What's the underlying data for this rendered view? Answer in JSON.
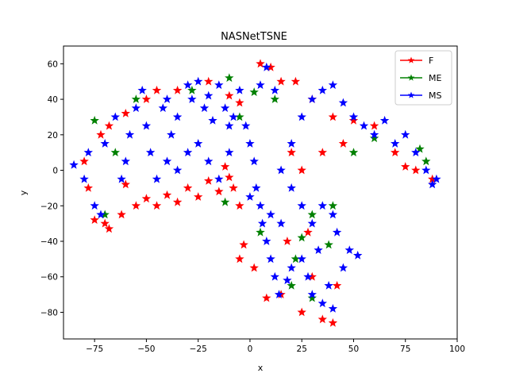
{
  "chart_data": {
    "type": "scatter",
    "title": "NASNetTSNE",
    "xlabel": "x",
    "ylabel": "y",
    "xlim": [
      -90,
      100
    ],
    "ylim": [
      -95,
      70
    ],
    "xticks": [
      -75,
      -50,
      -25,
      0,
      25,
      50,
      75,
      100
    ],
    "yticks": [
      -80,
      -60,
      -40,
      -20,
      0,
      20,
      40,
      60
    ],
    "xtick_labels": [
      "−75",
      "−50",
      "−25",
      "0",
      "25",
      "50",
      "75",
      "100"
    ],
    "ytick_labels": [
      "−80",
      "−60",
      "−40",
      "−20",
      "0",
      "20",
      "40",
      "60"
    ],
    "grid": false,
    "legend_position": "top-right",
    "marker": "star",
    "series": [
      {
        "name": "F",
        "color": "#ff0000",
        "points": [
          [
            -60,
            -8
          ],
          [
            -50,
            -16
          ],
          [
            -40,
            -14
          ],
          [
            -30,
            -10
          ],
          [
            -20,
            -6
          ],
          [
            -10,
            -4
          ],
          [
            -35,
            -18
          ],
          [
            -25,
            -15
          ],
          [
            -15,
            -12
          ],
          [
            -45,
            -20
          ],
          [
            -55,
            -20
          ],
          [
            -8,
            -10
          ],
          [
            -5,
            -20
          ],
          [
            -12,
            2
          ],
          [
            -70,
            -30
          ],
          [
            -68,
            -33
          ],
          [
            -75,
            -28
          ],
          [
            -62,
            -25
          ],
          [
            -78,
            -10
          ],
          [
            -80,
            5
          ],
          [
            -72,
            20
          ],
          [
            -68,
            25
          ],
          [
            -60,
            32
          ],
          [
            -50,
            40
          ],
          [
            -45,
            45
          ],
          [
            -35,
            45
          ],
          [
            -20,
            50
          ],
          [
            -10,
            42
          ],
          [
            -5,
            38
          ],
          [
            10,
            58
          ],
          [
            5,
            60
          ],
          [
            15,
            50
          ],
          [
            22,
            50
          ],
          [
            30,
            40
          ],
          [
            40,
            30
          ],
          [
            50,
            28
          ],
          [
            60,
            25
          ],
          [
            70,
            10
          ],
          [
            75,
            2
          ],
          [
            80,
            0
          ],
          [
            88,
            -5
          ],
          [
            45,
            15
          ],
          [
            35,
            10
          ],
          [
            25,
            0
          ],
          [
            20,
            10
          ],
          [
            -3,
            -42
          ],
          [
            -5,
            -50
          ],
          [
            2,
            -55
          ],
          [
            8,
            -72
          ],
          [
            15,
            -70
          ],
          [
            25,
            -80
          ],
          [
            35,
            -84
          ],
          [
            40,
            -86
          ],
          [
            30,
            -60
          ],
          [
            42,
            -65
          ],
          [
            18,
            -40
          ],
          [
            28,
            -35
          ]
        ]
      },
      {
        "name": "ME",
        "color": "#008000",
        "points": [
          [
            -70,
            -25
          ],
          [
            -65,
            10
          ],
          [
            -55,
            40
          ],
          [
            -28,
            45
          ],
          [
            -12,
            -18
          ],
          [
            -5,
            30
          ],
          [
            2,
            44
          ],
          [
            5,
            -35
          ],
          [
            22,
            -50
          ],
          [
            25,
            -38
          ],
          [
            20,
            -65
          ],
          [
            30,
            -72
          ],
          [
            30,
            -25
          ],
          [
            38,
            -42
          ],
          [
            40,
            -20
          ],
          [
            60,
            18
          ],
          [
            82,
            12
          ],
          [
            85,
            5
          ],
          [
            50,
            10
          ],
          [
            -75,
            28
          ],
          [
            -10,
            52
          ],
          [
            12,
            40
          ]
        ]
      },
      {
        "name": "MS",
        "color": "#0000ff",
        "points": [
          [
            -85,
            3
          ],
          [
            -80,
            -5
          ],
          [
            -78,
            10
          ],
          [
            -75,
            -20
          ],
          [
            -72,
            -25
          ],
          [
            -70,
            15
          ],
          [
            -65,
            30
          ],
          [
            -62,
            -5
          ],
          [
            -60,
            5
          ],
          [
            -58,
            20
          ],
          [
            -55,
            35
          ],
          [
            -52,
            45
          ],
          [
            -50,
            25
          ],
          [
            -48,
            10
          ],
          [
            -45,
            -5
          ],
          [
            -42,
            35
          ],
          [
            -40,
            40
          ],
          [
            -38,
            20
          ],
          [
            -35,
            30
          ],
          [
            -30,
            48
          ],
          [
            -28,
            40
          ],
          [
            -25,
            50
          ],
          [
            -22,
            35
          ],
          [
            -20,
            42
          ],
          [
            -15,
            48
          ],
          [
            -12,
            35
          ],
          [
            -10,
            25
          ],
          [
            -8,
            30
          ],
          [
            -5,
            45
          ],
          [
            -2,
            25
          ],
          [
            0,
            15
          ],
          [
            2,
            5
          ],
          [
            3,
            -10
          ],
          [
            5,
            -20
          ],
          [
            6,
            -30
          ],
          [
            8,
            -40
          ],
          [
            10,
            -50
          ],
          [
            12,
            -60
          ],
          [
            14,
            -70
          ],
          [
            18,
            -62
          ],
          [
            20,
            -55
          ],
          [
            25,
            -50
          ],
          [
            28,
            -60
          ],
          [
            30,
            -70
          ],
          [
            35,
            -75
          ],
          [
            40,
            -78
          ],
          [
            38,
            -65
          ],
          [
            33,
            -45
          ],
          [
            30,
            -30
          ],
          [
            35,
            -20
          ],
          [
            42,
            -35
          ],
          [
            48,
            -45
          ],
          [
            52,
            -48
          ],
          [
            45,
            -55
          ],
          [
            40,
            -25
          ],
          [
            15,
            0
          ],
          [
            20,
            15
          ],
          [
            25,
            30
          ],
          [
            30,
            40
          ],
          [
            35,
            45
          ],
          [
            40,
            48
          ],
          [
            45,
            38
          ],
          [
            50,
            30
          ],
          [
            55,
            25
          ],
          [
            60,
            20
          ],
          [
            65,
            28
          ],
          [
            70,
            15
          ],
          [
            75,
            20
          ],
          [
            80,
            10
          ],
          [
            85,
            0
          ],
          [
            90,
            -5
          ],
          [
            88,
            -8
          ],
          [
            12,
            45
          ],
          [
            8,
            58
          ],
          [
            5,
            48
          ],
          [
            20,
            -10
          ],
          [
            15,
            -30
          ],
          [
            25,
            -20
          ],
          [
            10,
            -25
          ],
          [
            0,
            -15
          ],
          [
            -15,
            -5
          ],
          [
            -20,
            5
          ],
          [
            -25,
            15
          ],
          [
            -30,
            10
          ],
          [
            -35,
            0
          ],
          [
            -40,
            5
          ],
          [
            -18,
            28
          ],
          [
            -10,
            10
          ]
        ]
      }
    ]
  }
}
